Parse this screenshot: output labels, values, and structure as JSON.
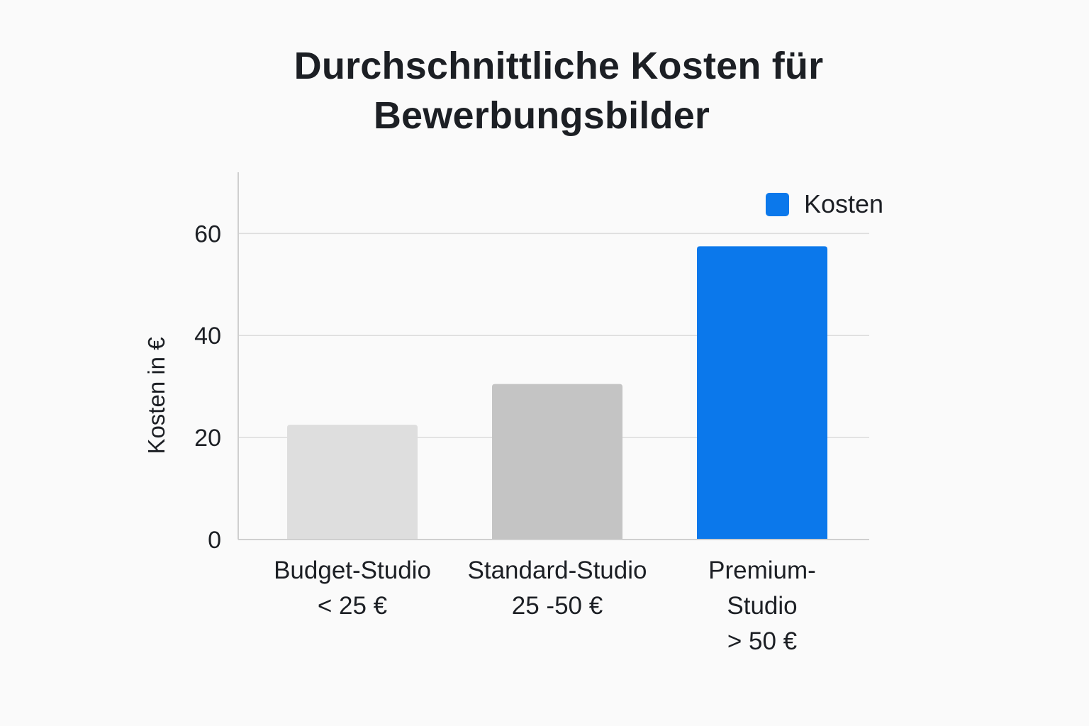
{
  "chart_data": {
    "type": "bar",
    "title_lines": [
      "Durchschnittliche Kosten für",
      "Bewerbungsbilder"
    ],
    "ylabel": "Kosten in €",
    "xlabel": "",
    "categories": [
      "Budget-Studio < 25 €",
      "Standard-Studio 25 -50 €",
      "Premium-Studio > 50 €"
    ],
    "category_lines": [
      [
        "Budget-Studio",
        "< 25 €"
      ],
      [
        "Standard-Studio",
        "25 -50 €"
      ],
      [
        "Premium-",
        "Studio",
        "> 50 €"
      ]
    ],
    "series": [
      {
        "name": "Kosten",
        "values": [
          22.5,
          30.5,
          57.5
        ]
      }
    ],
    "bar_colors": [
      "#dedede",
      "#c4c4c4",
      "#0b78eb"
    ],
    "legend": {
      "label": "Kosten",
      "color": "#0b78eb",
      "position": "top-right"
    },
    "yticks": [
      0,
      20,
      40,
      60
    ],
    "ylim": [
      0,
      72
    ],
    "grid": true
  }
}
